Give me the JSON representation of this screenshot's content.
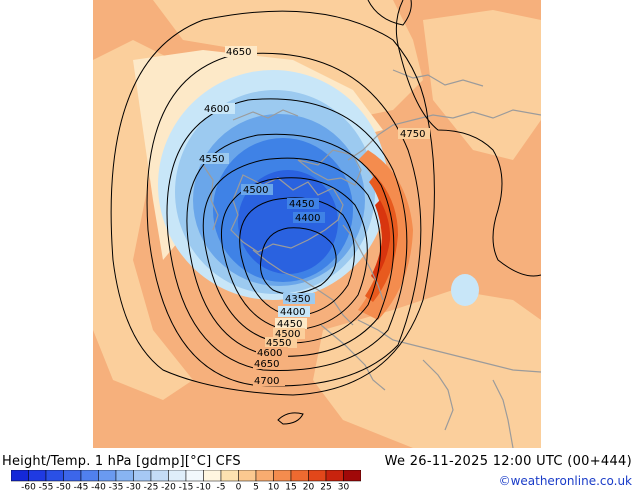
{
  "title": "Height/Temp. 1 hPa [gdmp][°C] CFS",
  "valid_time": "We 26-11-2025 12:00 UTC (00+444)",
  "credit": "©weatheronline.co.uk",
  "colors": {
    "warm_bg": "#f6b07c",
    "warm_light": "#fbcf9c",
    "pale": "#fde9c8",
    "warm_strong": "#f48c4e",
    "hot": "#e85a1e",
    "hottest": "#d8350e",
    "cold_1": "#c8e6f8",
    "cold_2": "#9ccaf0",
    "cold_3": "#6aa6ea",
    "cold_4": "#3f82e6",
    "cold_5": "#2a62e0",
    "land": "#9b9b9b"
  },
  "colorbar": {
    "labels": [
      "-60",
      "-55",
      "-50",
      "-45",
      "-40",
      "-35",
      "-30",
      "-25",
      "-20",
      "-15",
      "-10",
      "-5",
      "0",
      "5",
      "10",
      "15",
      "20",
      "25",
      "30"
    ],
    "colors": [
      "#1428d8",
      "#1f3ae2",
      "#2a50e6",
      "#3c66ea",
      "#5080ee",
      "#6a9af0",
      "#88b4f2",
      "#a6c8f4",
      "#c4dcf6",
      "#dfeefa",
      "#f2f8fc",
      "#fff6e0",
      "#fde2b0",
      "#fbc990",
      "#f8ac70",
      "#f48c4e",
      "#ee6a30",
      "#e2471a",
      "#c8230e",
      "#a00808"
    ]
  },
  "contours": {
    "labels": [
      "4650",
      "4600",
      "4550",
      "4500",
      "4450",
      "4400",
      "4750",
      "4350",
      "4400",
      "4450",
      "4500",
      "4550",
      "4600",
      "4650",
      "4700"
    ]
  }
}
